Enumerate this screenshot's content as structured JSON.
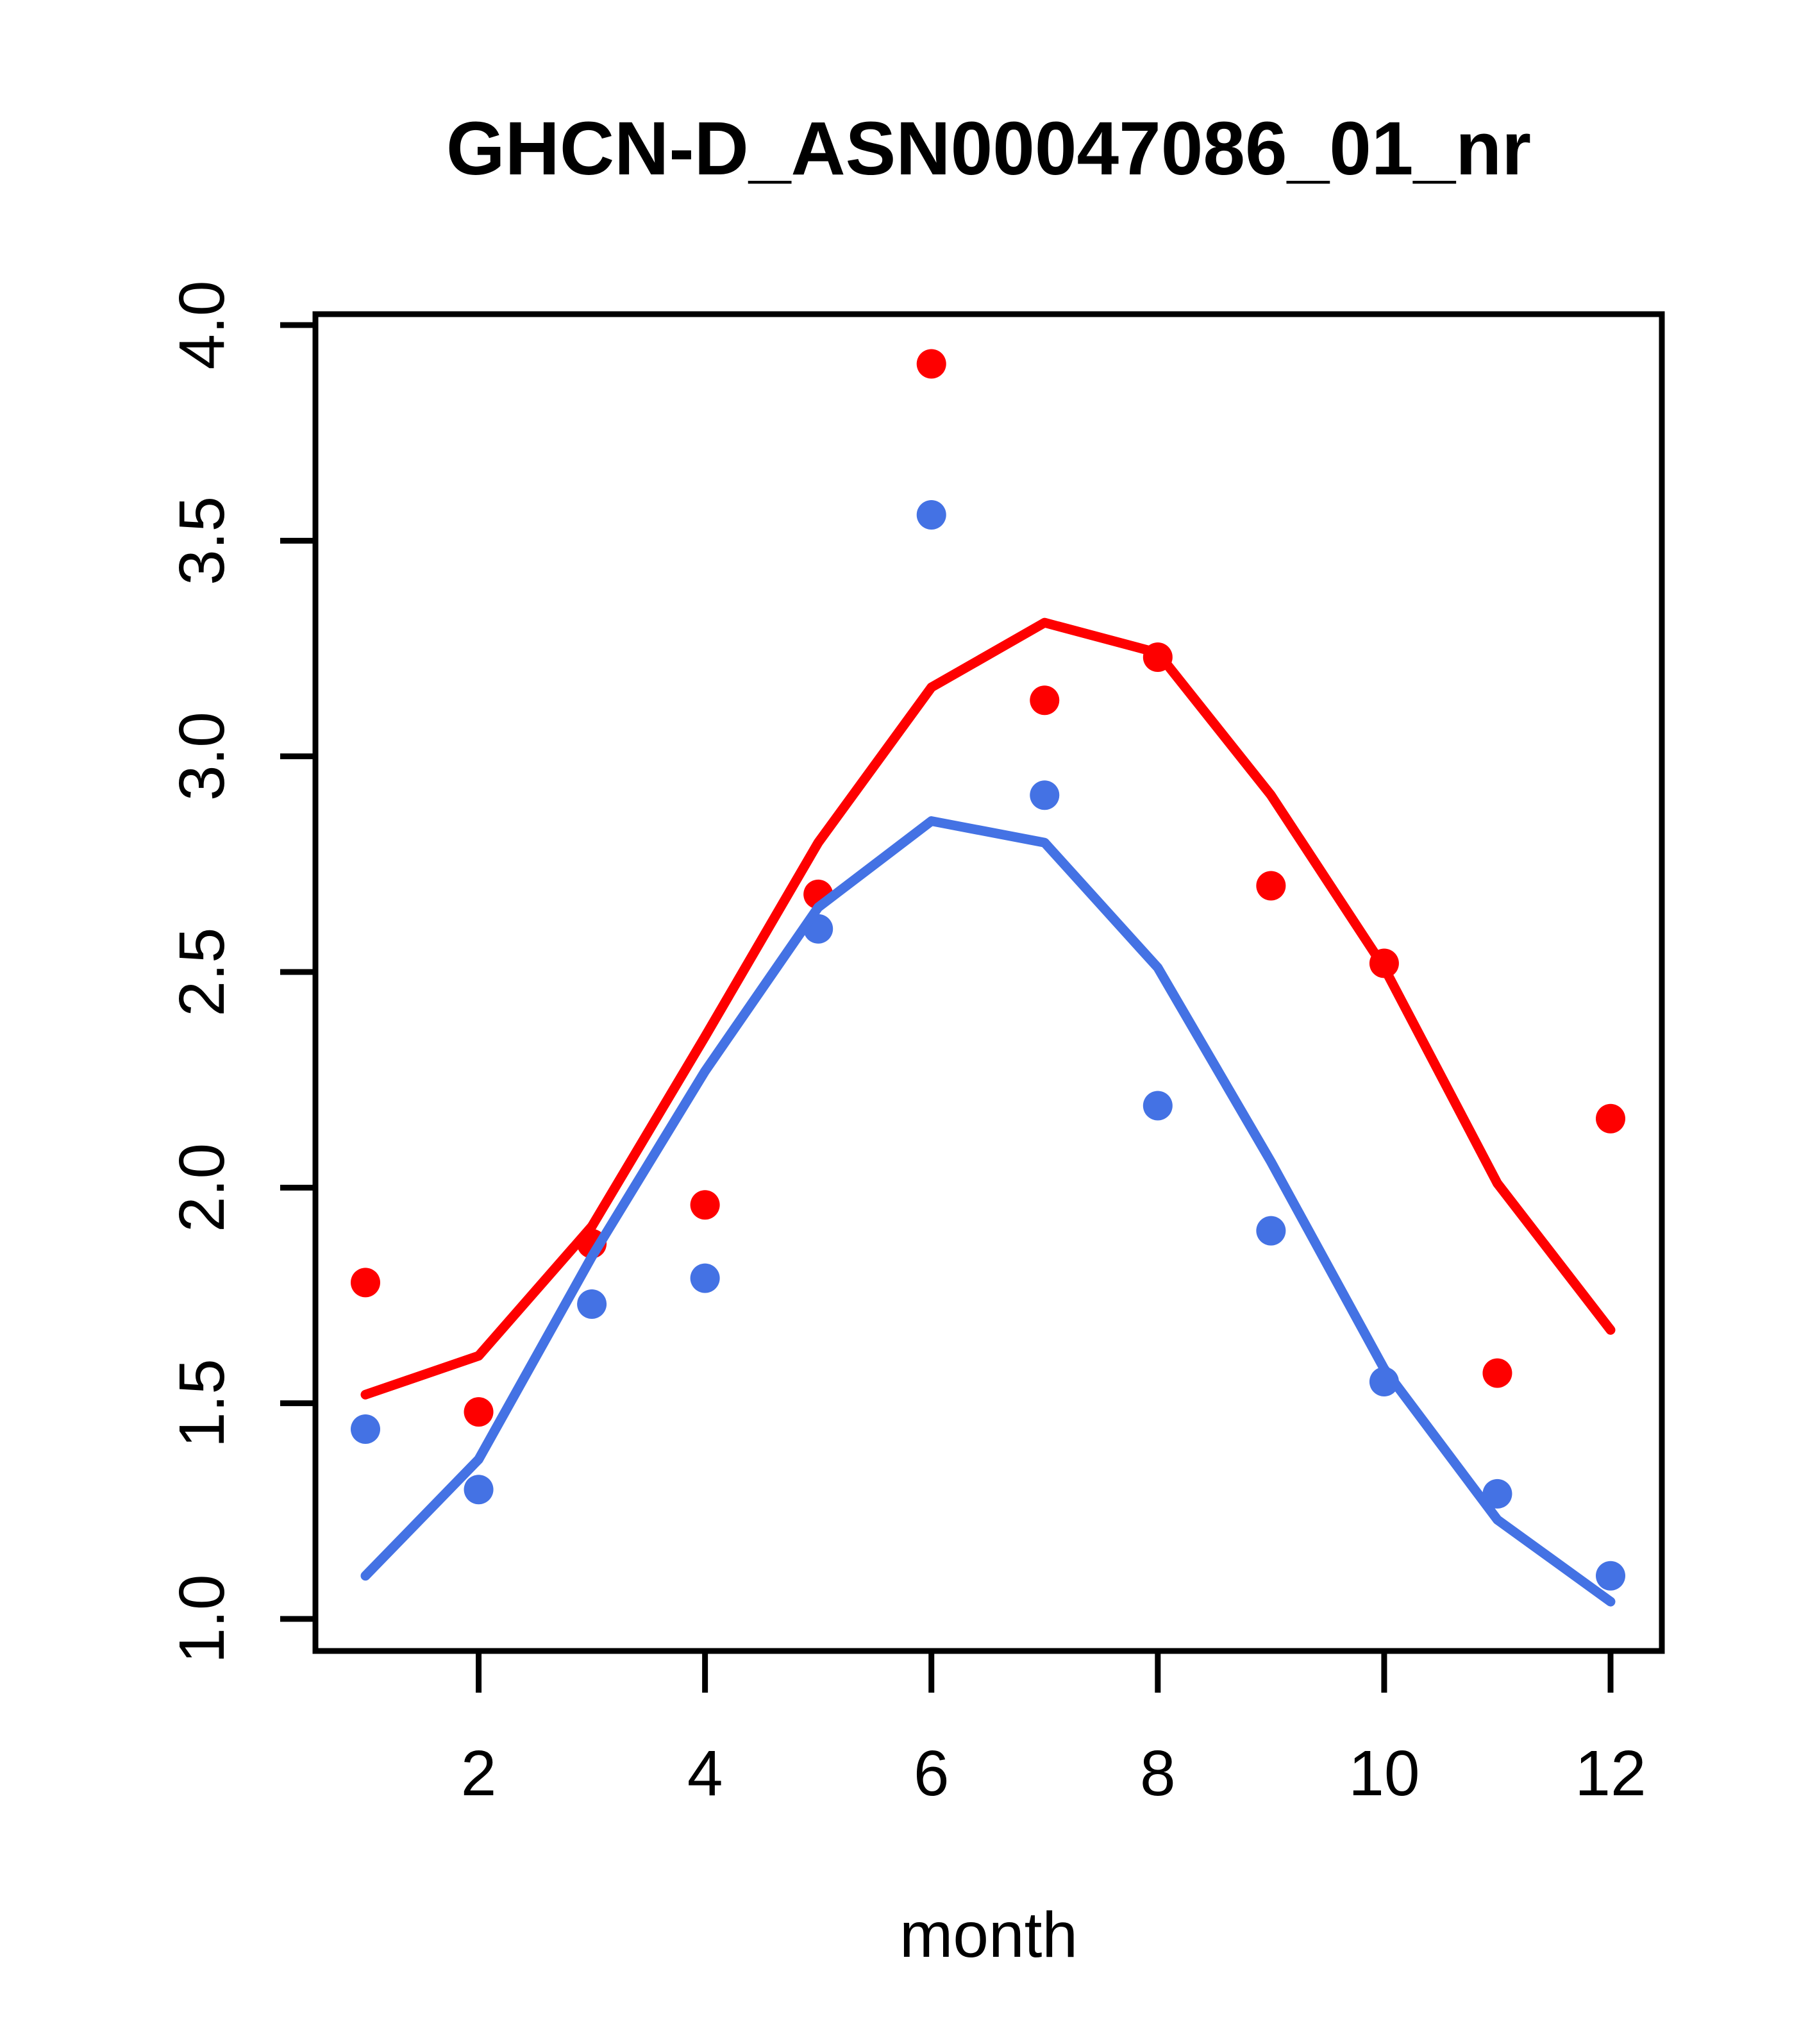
{
  "title": "GHCN-D_ASN00047086_01_nr",
  "x_label": "month",
  "colors": {
    "red": "#FE0000",
    "blue": "#4472E4",
    "axis": "#000000",
    "background": "#FFFFFF"
  },
  "chart_data": {
    "type": "scatter",
    "title": "GHCN-D_ASN00047086_01_nr",
    "xlabel": "month",
    "ylabel": "",
    "x": [
      1,
      2,
      3,
      4,
      5,
      6,
      7,
      8,
      9,
      10,
      11,
      12
    ],
    "x_ticks": [
      2,
      4,
      6,
      8,
      10,
      12
    ],
    "y_ticks": [
      "1.0",
      "1.5",
      "2.0",
      "2.5",
      "3.0",
      "3.5",
      "4.0"
    ],
    "xlim": [
      0.56,
      12.44
    ],
    "ylim": [
      0.93,
      4.02
    ],
    "grid": false,
    "legend_position": "none",
    "series": [
      {
        "name": "red-points",
        "kind": "points",
        "color": "red",
        "values": [
          1.78,
          1.48,
          1.87,
          1.96,
          2.68,
          3.91,
          3.13,
          3.23,
          2.7,
          2.52,
          1.57,
          2.16
        ]
      },
      {
        "name": "blue-points",
        "kind": "points",
        "color": "blue",
        "values": [
          1.44,
          1.3,
          1.73,
          1.79,
          2.6,
          3.56,
          2.91,
          2.19,
          1.9,
          1.55,
          1.29,
          1.1
        ]
      },
      {
        "name": "red-line",
        "kind": "line",
        "color": "red",
        "values": [
          1.52,
          1.61,
          1.91,
          2.35,
          2.8,
          3.16,
          3.31,
          3.24,
          2.91,
          2.51,
          2.01,
          1.67
        ]
      },
      {
        "name": "blue-line",
        "kind": "line",
        "color": "blue",
        "values": [
          1.1,
          1.37,
          1.84,
          2.27,
          2.65,
          2.85,
          2.8,
          2.51,
          2.06,
          1.58,
          1.23,
          1.04
        ]
      }
    ]
  }
}
